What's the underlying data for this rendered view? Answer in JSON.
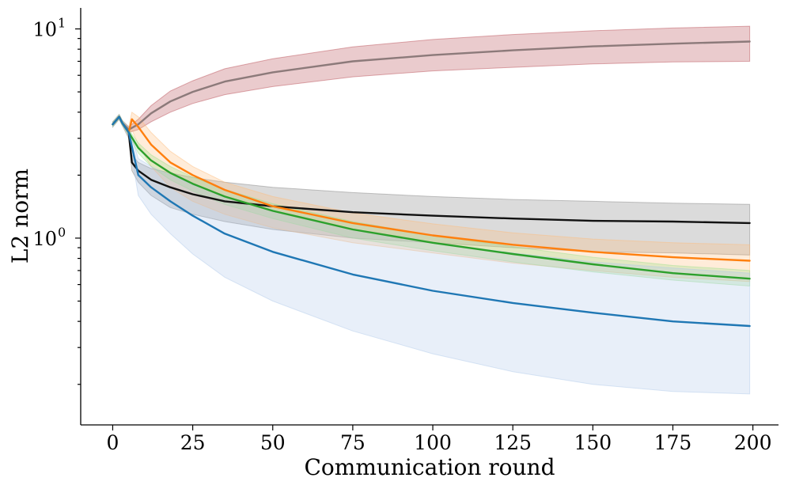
{
  "chart_data": {
    "type": "line",
    "title": "",
    "xlabel": "Communication round",
    "ylabel": "L2 norm",
    "xscale": "linear",
    "yscale": "log",
    "xlim": [
      -10,
      208
    ],
    "ylim": [
      0.128,
      12.6
    ],
    "xticks": [
      0,
      25,
      50,
      75,
      100,
      125,
      150,
      175,
      200
    ],
    "yticks": [
      {
        "value": 1,
        "base": "10",
        "exp": "0"
      },
      {
        "value": 10,
        "base": "10",
        "exp": "1"
      }
    ],
    "grid": false,
    "legend": null,
    "series": [
      {
        "name": "brown",
        "color": "#8c7a7a",
        "band_color": "#b5454d",
        "x": [
          0,
          2,
          3,
          5,
          8,
          12,
          18,
          25,
          35,
          50,
          75,
          100,
          125,
          150,
          175,
          199
        ],
        "y": [
          3.5,
          3.8,
          3.55,
          3.3,
          3.5,
          3.95,
          4.5,
          5.0,
          5.6,
          6.2,
          7.0,
          7.5,
          7.9,
          8.25,
          8.5,
          8.7
        ],
        "lower": [
          3.4,
          3.7,
          3.45,
          3.2,
          3.3,
          3.6,
          4.0,
          4.4,
          4.85,
          5.3,
          5.9,
          6.3,
          6.55,
          6.8,
          6.95,
          7.0
        ],
        "upper": [
          3.6,
          3.9,
          3.65,
          3.4,
          3.7,
          4.3,
          5.05,
          5.65,
          6.45,
          7.2,
          8.2,
          8.9,
          9.4,
          9.8,
          10.1,
          10.3
        ]
      },
      {
        "name": "black",
        "color": "#111111",
        "band_color": "#7f7f7f",
        "x": [
          0,
          2,
          3,
          5,
          6,
          8,
          12,
          18,
          25,
          35,
          50,
          75,
          100,
          125,
          150,
          175,
          199
        ],
        "y": [
          3.5,
          3.8,
          3.55,
          3.2,
          2.3,
          2.1,
          1.9,
          1.75,
          1.62,
          1.5,
          1.42,
          1.33,
          1.28,
          1.24,
          1.21,
          1.2,
          1.18
        ],
        "lower": [
          3.4,
          3.7,
          3.45,
          3.0,
          2.1,
          1.85,
          1.6,
          1.4,
          1.3,
          1.2,
          1.1,
          1.0,
          0.95,
          0.9,
          0.86,
          0.85,
          0.83
        ],
        "upper": [
          3.6,
          3.9,
          3.65,
          3.4,
          2.5,
          2.3,
          2.15,
          2.05,
          1.95,
          1.85,
          1.75,
          1.65,
          1.58,
          1.53,
          1.5,
          1.47,
          1.45
        ]
      },
      {
        "name": "orange",
        "color": "#ff7f0e",
        "band_color": "#ffbb78",
        "x": [
          0,
          2,
          3,
          5,
          6,
          8,
          12,
          18,
          25,
          35,
          50,
          75,
          100,
          125,
          150,
          175,
          199
        ],
        "y": [
          3.5,
          3.8,
          3.55,
          3.2,
          3.7,
          3.4,
          2.8,
          2.3,
          2.0,
          1.7,
          1.42,
          1.18,
          1.03,
          0.93,
          0.86,
          0.81,
          0.78
        ],
        "lower": [
          3.4,
          3.7,
          3.45,
          3.0,
          3.3,
          2.8,
          2.2,
          1.75,
          1.5,
          1.3,
          1.12,
          0.95,
          0.85,
          0.76,
          0.7,
          0.65,
          0.62
        ],
        "upper": [
          3.6,
          3.9,
          3.65,
          3.4,
          4.0,
          3.8,
          3.2,
          2.6,
          2.2,
          1.85,
          1.58,
          1.32,
          1.17,
          1.06,
          0.99,
          0.95,
          0.93
        ]
      },
      {
        "name": "green",
        "color": "#2ca02c",
        "band_color": "#98df8a",
        "x": [
          0,
          2,
          3,
          5,
          8,
          12,
          18,
          25,
          35,
          50,
          75,
          100,
          125,
          150,
          175,
          199
        ],
        "y": [
          3.5,
          3.8,
          3.55,
          3.2,
          2.7,
          2.35,
          2.05,
          1.82,
          1.58,
          1.35,
          1.1,
          0.95,
          0.84,
          0.75,
          0.68,
          0.64
        ],
        "lower": [
          3.4,
          3.7,
          3.45,
          3.1,
          2.55,
          2.2,
          1.9,
          1.68,
          1.45,
          1.24,
          1.0,
          0.87,
          0.77,
          0.69,
          0.63,
          0.59
        ],
        "upper": [
          3.6,
          3.9,
          3.65,
          3.3,
          2.85,
          2.5,
          2.2,
          1.96,
          1.71,
          1.46,
          1.2,
          1.03,
          0.91,
          0.81,
          0.74,
          0.7
        ]
      },
      {
        "name": "blue",
        "color": "#1f77b4",
        "band_color": "#aec7e8",
        "x": [
          0,
          2,
          3,
          5,
          8,
          12,
          18,
          25,
          35,
          50,
          75,
          100,
          125,
          150,
          175,
          199
        ],
        "y": [
          3.5,
          3.8,
          3.55,
          3.2,
          2.0,
          1.75,
          1.5,
          1.28,
          1.05,
          0.86,
          0.67,
          0.56,
          0.49,
          0.44,
          0.4,
          0.38
        ],
        "lower": [
          3.4,
          3.7,
          3.45,
          3.0,
          1.6,
          1.3,
          1.05,
          0.84,
          0.65,
          0.5,
          0.36,
          0.28,
          0.23,
          0.2,
          0.185,
          0.18
        ],
        "upper": [
          3.6,
          3.9,
          3.65,
          3.4,
          2.4,
          2.2,
          2.0,
          1.8,
          1.58,
          1.36,
          1.1,
          0.95,
          0.85,
          0.77,
          0.72,
          0.68
        ]
      }
    ]
  }
}
